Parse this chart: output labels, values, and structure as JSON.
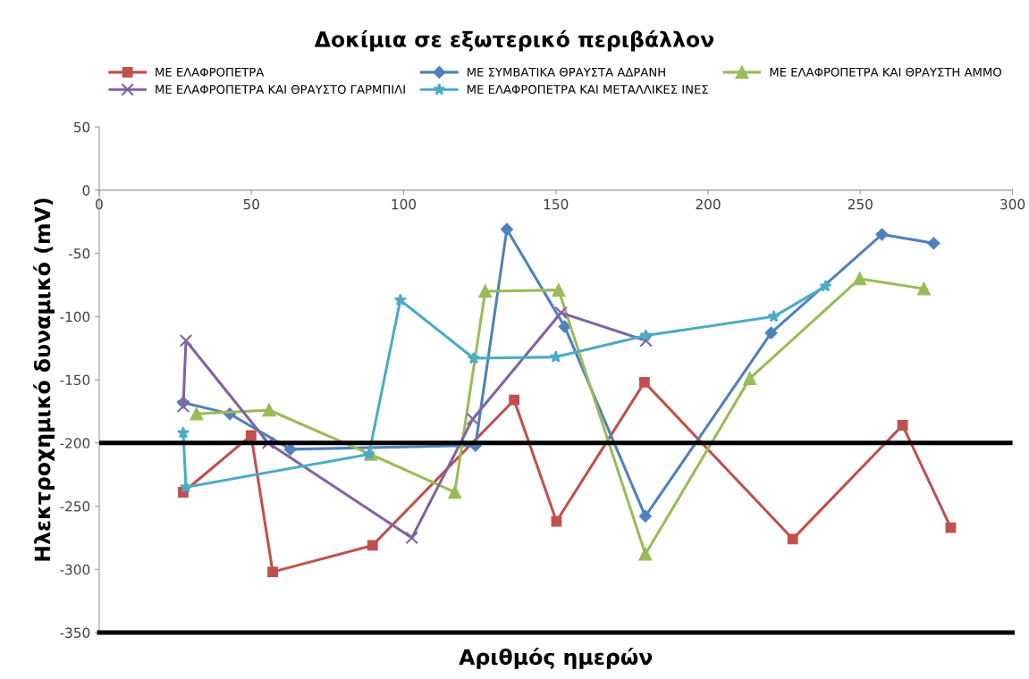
{
  "chart_data": {
    "type": "line",
    "title": "Δοκίμια σε εξωτερικό περιβάλλον",
    "xlabel": "Αριθμός ημερών",
    "ylabel": "Ηλεκτροχημικό δυναμικό (mV)",
    "xlim": [
      0,
      300
    ],
    "xticks": [
      0,
      50,
      100,
      150,
      200,
      250,
      300
    ],
    "ylim": [
      -350,
      50
    ],
    "yticks": [
      -350,
      -300,
      -250,
      -200,
      -150,
      -100,
      -50,
      0,
      50
    ],
    "grid": false,
    "legend": "top",
    "line_style": "solid",
    "ref_lines": [
      {
        "axis": "y",
        "value": -200,
        "color": "#000000"
      }
    ],
    "series": [
      {
        "name": "ΜΕ ΕΛΑΦΡΟΠΕΤΡΑ",
        "color": "#c0504d",
        "marker": "square",
        "x": [
          27.6,
          49.9,
          57,
          89.8,
          136.3,
          150.2,
          179.1,
          227.8,
          263.9,
          279.7
        ],
        "values": [
          -239,
          -194,
          -302,
          -281,
          -166,
          -262,
          -152,
          -276,
          -186,
          -267
        ]
      },
      {
        "name": "ΜΕ ΣΥΜΒΑΤΙΚΑ ΘΡΑΥΣΤΑ ΑΔΡΑΝΗ",
        "color": "#4f81bd",
        "marker": "diamond",
        "x": [
          27.6,
          42.9,
          62.8,
          123.6,
          133.9,
          152.9,
          179.4,
          220.7,
          257.1,
          274.1
        ],
        "values": [
          -168,
          -177,
          -205,
          -202,
          -31,
          -108,
          -258,
          -113,
          -35,
          -42
        ]
      },
      {
        "name": "ΜΕ ΕΛΑΦΡΟΠΕΤΡΑ ΚΑΙ ΘΡΑΥΣΤΗ ΑΜΜΟ",
        "color": "#9bbb59",
        "marker": "triangle",
        "x": [
          32,
          55.8,
          89.2,
          116.8,
          126.8,
          150.9,
          179.4,
          213.7,
          249.8,
          270.9
        ],
        "values": [
          -177,
          -174,
          -209,
          -239,
          -80,
          -79,
          -288,
          -149,
          -70,
          -78
        ]
      },
      {
        "name": "ΜΕ ΕΛΑΦΡΟΠΕΤΡΑ ΚΑΙ ΘΡΑΥΣΤΟ ΓΑΡΜΠΙΛΙ",
        "color": "#8064a2",
        "marker": "cross",
        "x": [
          27.6,
          28.5,
          55.5,
          102.7,
          122.7,
          151.7,
          179.6
        ],
        "values": [
          -171,
          -119,
          -200,
          -275,
          -181,
          -97,
          -119
        ]
      },
      {
        "name": "ΜΕ ΕΛΑΦΡΟΠΕΤΡΑ ΚΑΙ ΜΕΤΑΛΛΙΚΕΣ ΙΝΕΣ",
        "color": "#4bacc6",
        "marker": "star",
        "x": [
          27.6,
          28.5,
          88.6,
          98.9,
          123,
          150,
          179.6,
          221.6,
          238.6
        ],
        "values": [
          -192,
          -235,
          -209,
          -87,
          -133,
          -132,
          -115,
          -100,
          -76
        ]
      }
    ]
  }
}
